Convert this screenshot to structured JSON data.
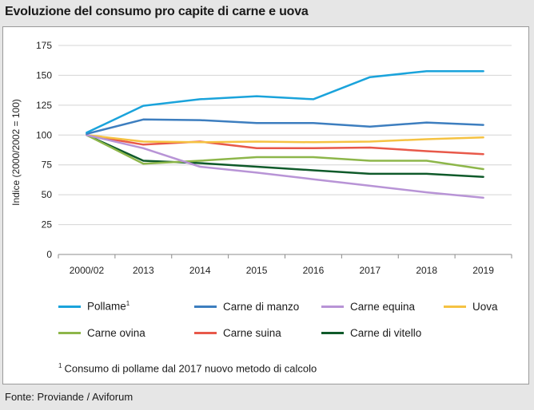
{
  "title": "Evoluzione del consumo pro capite di carne e uova",
  "source": "Fonte:  Proviande / Aviforum",
  "footnote": {
    "mark": "1",
    "text": "Consumo di pollame dal 2017 nuovo metodo di calcolo"
  },
  "chart_data": {
    "type": "line",
    "title": "Evoluzione del consumo pro capite di carne e uova",
    "xlabel": "",
    "ylabel": "Indice (2000/2002 = 100)",
    "ylim": [
      0,
      175
    ],
    "yticks": [
      0,
      25,
      50,
      75,
      100,
      125,
      150,
      175
    ],
    "grid": "horizontal",
    "legend_position": "bottom",
    "categories": [
      "2000/02",
      "2013",
      "2014",
      "2015",
      "2016",
      "2017",
      "2018",
      "2019"
    ],
    "series": [
      {
        "name": "Pollame",
        "sup": "1",
        "color": "#1aa3db",
        "values": [
          102,
          124.5,
          130,
          132.5,
          130,
          148.5,
          153.5,
          153.5
        ]
      },
      {
        "name": "Carne di manzo",
        "color": "#3d7ebf",
        "values": [
          101,
          113,
          112.5,
          110,
          110,
          107,
          110.5,
          108.5
        ]
      },
      {
        "name": "Carne equina",
        "color": "#b894d6",
        "values": [
          100,
          89,
          73.5,
          68.5,
          63,
          57.5,
          52,
          47.5
        ]
      },
      {
        "name": "Uova",
        "color": "#f5c242",
        "values": [
          100,
          94.5,
          94,
          94.5,
          94,
          94.5,
          96.5,
          98
        ]
      },
      {
        "name": "Carne ovina",
        "color": "#8db64a",
        "values": [
          100,
          76,
          78.5,
          81.5,
          81.5,
          78.5,
          78.5,
          71.5
        ]
      },
      {
        "name": "Carne suina",
        "color": "#e8594a",
        "values": [
          100,
          92,
          94.5,
          89,
          89,
          89.5,
          86.5,
          84
        ]
      },
      {
        "name": "Carne di vitello",
        "color": "#0f5a2a",
        "values": [
          100,
          78.5,
          76.5,
          73.5,
          70.5,
          67.5,
          67.5,
          65
        ]
      }
    ]
  }
}
